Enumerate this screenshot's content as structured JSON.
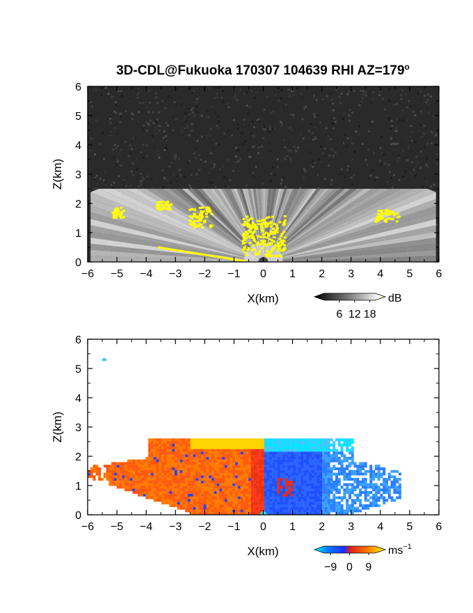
{
  "figure": {
    "title_main": "3D-CDL@Fukuoka 170307 104639 RHI AZ=179",
    "title_degree": "o"
  },
  "chart_data": [
    {
      "type": "heatmap",
      "quantity": "backscatter intensity",
      "xlabel": "X(km)",
      "ylabel": "Z(km)",
      "xlim": [
        -6,
        6
      ],
      "ylim": [
        0,
        6
      ],
      "xticks": [
        -6,
        -5,
        -4,
        -3,
        -2,
        -1,
        0,
        1,
        2,
        3,
        4,
        5,
        6
      ],
      "yticks": [
        0,
        1,
        2,
        3,
        4,
        5,
        6
      ],
      "colorbar": {
        "unit": "dB",
        "ticks": [
          6,
          12,
          18
        ],
        "range": [
          0,
          20
        ]
      },
      "colors": {
        "background_noise": "#2a2a2a",
        "signal": "#e6e6e6",
        "saturated": "#ffff00"
      },
      "features": [
        {
          "label": "beam fan",
          "x": [
            -6,
            6
          ],
          "z_top": 2.5,
          "origin": [
            0,
            0
          ]
        },
        {
          "label": "yellow patch",
          "x": [
            -5.2,
            -4.8
          ],
          "z": [
            1.5,
            1.9
          ]
        },
        {
          "label": "yellow patch",
          "x": [
            -3.7,
            -3.2
          ],
          "z": [
            1.8,
            2.1
          ]
        },
        {
          "label": "yellow patch",
          "x": [
            -2.6,
            -1.8
          ],
          "z": [
            1.2,
            1.9
          ]
        },
        {
          "label": "yellow patch",
          "x": [
            -0.8,
            0.7
          ],
          "z": [
            0.2,
            1.6
          ]
        },
        {
          "label": "yellow patch",
          "x": [
            3.8,
            4.6
          ],
          "z": [
            1.4,
            1.8
          ]
        },
        {
          "label": "yellow ground line",
          "x": [
            -3.6,
            -0.6
          ],
          "z": [
            0.0,
            0.5
          ]
        }
      ]
    },
    {
      "type": "heatmap",
      "quantity": "radial velocity",
      "xlabel": "X(km)",
      "ylabel": "Z(km)",
      "xlim": [
        -6,
        6
      ],
      "ylim": [
        0,
        6
      ],
      "xticks": [
        -6,
        -5,
        -4,
        -3,
        -2,
        -1,
        0,
        1,
        2,
        3,
        4,
        5,
        6
      ],
      "yticks": [
        0,
        1,
        2,
        3,
        4,
        5,
        6
      ],
      "colorbar": {
        "unit": "ms",
        "unit_exponent": "−1",
        "ticks": [
          "−9",
          "0",
          "9"
        ],
        "range": [
          -12,
          12
        ]
      },
      "colors": {
        "negative": "#1f4fff",
        "near_negative": "#00d8ff",
        "zero": "#d71f1f",
        "positive": "#ff8a00",
        "high_positive": "#ffff00"
      },
      "regions": [
        {
          "label": "positive velocity region",
          "x": [
            -6,
            0
          ],
          "z_top": 2.6,
          "velocity_ms": 6
        },
        {
          "label": "negative velocity region",
          "x": [
            0,
            4.7
          ],
          "z_top": 2.6,
          "velocity_ms": -7
        },
        {
          "label": "isolated echo",
          "x": [
            -5.5,
            -5.4
          ],
          "z": [
            5.2,
            5.35
          ],
          "velocity_ms": -9
        }
      ]
    }
  ]
}
